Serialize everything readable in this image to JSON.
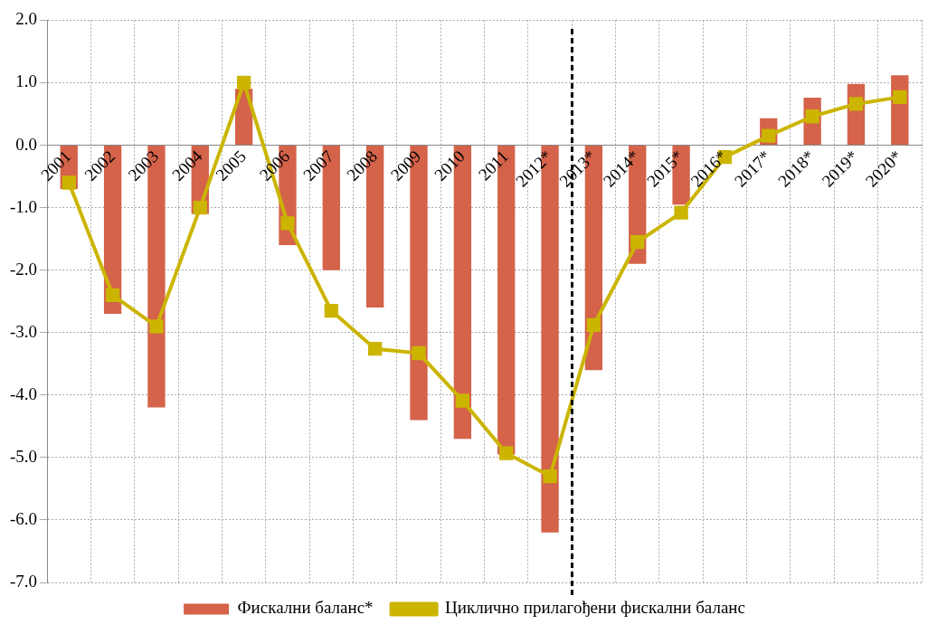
{
  "chart_data": {
    "type": "bar",
    "categories": [
      "2001",
      "2002",
      "2003",
      "2004",
      "2005",
      "2006",
      "2007",
      "2008",
      "2009",
      "2010",
      "2011",
      "2012*",
      "2013*",
      "2014*",
      "2015*",
      "2016*",
      "2017*",
      "2018*",
      "2019*",
      "2020*"
    ],
    "series": [
      {
        "name": "Фискални баланс*",
        "color": "#d4634a",
        "values": [
          -0.7,
          -2.7,
          -4.2,
          -1.1,
          0.9,
          -1.6,
          -2.0,
          -2.6,
          -4.4,
          -4.7,
          -4.95,
          -6.2,
          -3.6,
          -1.9,
          -0.95,
          null,
          0.43,
          0.76,
          0.98,
          1.12
        ]
      },
      {
        "name": "Циклично прилагођени фискални баланс",
        "type": "line",
        "color": "#cbb500",
        "marker": "square",
        "values": [
          -0.6,
          -2.4,
          -2.9,
          -1.0,
          1.0,
          -1.25,
          -2.65,
          -3.26,
          -3.33,
          -4.09,
          -4.93,
          -5.3,
          -2.88,
          -1.55,
          -1.08,
          -0.19,
          0.15,
          0.46,
          0.66,
          0.77
        ]
      }
    ],
    "ylim": [
      -7,
      2
    ],
    "yticks": [
      {
        "value": 2,
        "label": "2.0"
      },
      {
        "value": 1,
        "label": "1.0"
      },
      {
        "value": 0,
        "label": "0.0"
      },
      {
        "value": -1,
        "label": "-1.0"
      },
      {
        "value": -2,
        "label": "-2.0"
      },
      {
        "value": -3,
        "label": "-3.0"
      },
      {
        "value": -4,
        "label": "-4.0"
      },
      {
        "value": -5,
        "label": "-5.0"
      },
      {
        "value": -6,
        "label": "-6.0"
      },
      {
        "value": -7,
        "label": "-7.0"
      }
    ],
    "ref_lines": [
      {
        "axis": "x",
        "value": "2013*",
        "color": "#000000",
        "line_style": "dashed"
      }
    ],
    "grid": true,
    "legend": "bottom"
  }
}
